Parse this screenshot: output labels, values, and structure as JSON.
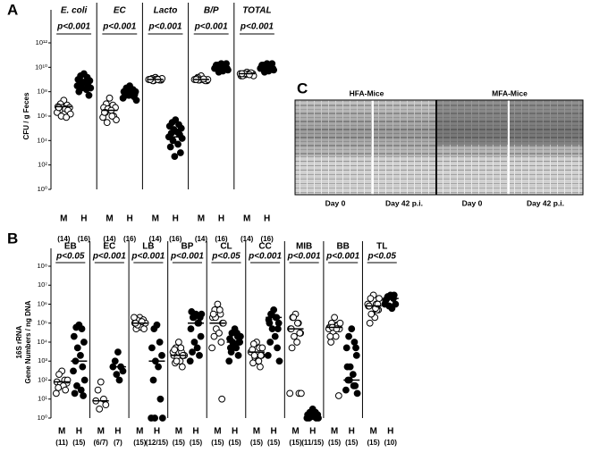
{
  "panel_labels": [
    "A",
    "B",
    "C"
  ],
  "chart_data": [
    {
      "type": "scatter",
      "log_scale": true,
      "y_label": "CFU / g Feces",
      "ylim": [
        1,
        1000000000000.0
      ],
      "yticks": [
        {
          "value": 1,
          "label": "10⁰"
        },
        {
          "value": 100,
          "label": "10²"
        },
        {
          "value": 10000,
          "label": "10⁴"
        },
        {
          "value": 1000000.0,
          "label": "10⁶"
        },
        {
          "value": 100000000.0,
          "label": "10⁸"
        },
        {
          "value": 10000000000.0,
          "label": "10¹⁰"
        },
        {
          "value": 1000000000000.0,
          "label": "10¹²"
        }
      ],
      "panels": [
        {
          "title": "E. coli",
          "p_value": "p<0.001",
          "groups": [
            {
              "name": "M",
              "n": "(14)",
              "marker": "open",
              "median": 6000000.0,
              "values": [
                20000000.0,
                10000000.0,
                8000000.0,
                6000000.0,
                5000000.0,
                5000000.0,
                4000000.0,
                3000000.0,
                3000000.0,
                2000000.0,
                1500000.0,
                1000000.0,
                800000.0,
                5000000.0
              ]
            },
            {
              "name": "H",
              "n": "(16)",
              "marker": "filled",
              "median": 300000000.0,
              "values": [
                3000000000.0,
                2000000000.0,
                1500000000.0,
                1000000000.0,
                800000000.0,
                600000000.0,
                500000000.0,
                400000000.0,
                300000000.0,
                300000000.0,
                200000000.0,
                200000000.0,
                150000000.0,
                100000000.0,
                50000000.0,
                600000000.0
              ]
            }
          ]
        },
        {
          "title": "EC",
          "p_value": "p<0.001",
          "groups": [
            {
              "name": "M",
              "n": "(14)",
              "marker": "open",
              "median": 3000000.0,
              "values": [
                30000000.0,
                10000000.0,
                8000000.0,
                5000000.0,
                5000000.0,
                4000000.0,
                3000000.0,
                2000000.0,
                1000000.0,
                800000.0,
                500000.0,
                300000.0,
                1000000.0,
                2000000.0
              ]
            },
            {
              "name": "H",
              "n": "(16)",
              "marker": "filled",
              "median": 100000000.0,
              "values": [
                300000000.0,
                200000000.0,
                150000000.0,
                100000000.0,
                100000000.0,
                80000000.0,
                60000000.0,
                50000000.0,
                40000000.0,
                30000000.0,
                20000000.0,
                100000000.0,
                150000000.0,
                80000000.0,
                60000000.0,
                50000000.0
              ]
            }
          ]
        },
        {
          "title": "Lacto",
          "p_value": "p<0.001",
          "groups": [
            {
              "name": "M",
              "n": "(14)",
              "marker": "open",
              "median": 1000000000.0,
              "values": [
                1500000000.0,
                1200000000.0,
                1000000000.0,
                1000000000.0,
                900000000.0,
                800000000.0,
                1100000000.0,
                1000000000.0,
                900000000.0,
                1000000000.0,
                1200000000.0,
                800000000.0,
                1000000000.0,
                1000000000.0
              ]
            },
            {
              "name": "H",
              "n": "(16)",
              "marker": "filled",
              "median": 20000.0,
              "values": [
                500000.0,
                300000.0,
                200000.0,
                150000.0,
                100000.0,
                80000.0,
                50000.0,
                40000.0,
                30000.0,
                20000.0,
                15000.0,
                10000.0,
                5000.0,
                3000.0,
                1000.0,
                500
              ]
            }
          ]
        },
        {
          "title": "B/P",
          "p_value": "p<0.001",
          "groups": [
            {
              "name": "M",
              "n": "(14)",
              "marker": "open",
              "median": 1000000000.0,
              "values": [
                2000000000.0,
                1500000000.0,
                1000000000.0,
                1000000000.0,
                800000000.0,
                900000000.0,
                1000000000.0,
                1200000000.0,
                800000000.0,
                1000000000.0,
                1000000000.0,
                900000000.0,
                1100000000.0,
                1000000000.0
              ]
            },
            {
              "name": "H",
              "n": "(16)",
              "marker": "filled",
              "median": 10000000000.0,
              "values": [
                20000000000.0,
                15000000000.0,
                10000000000.0,
                10000000000.0,
                8000000000.0,
                6000000000.0,
                5000000000.0,
                10000000000.0,
                12000000000.0,
                8000000000.0,
                6000000000.0,
                4000000000.0,
                10000000000.0,
                15000000000.0,
                20000000000.0,
                8000000000.0
              ]
            }
          ]
        },
        {
          "title": "TOTAL",
          "p_value": "p<0.001",
          "groups": [
            {
              "name": "M",
              "n": "(14)",
              "marker": "open",
              "median": 3000000000.0,
              "values": [
                4000000000.0,
                3000000000.0,
                3000000000.0,
                2000000000.0,
                3000000000.0,
                2500000000.0,
                3000000000.0,
                2000000000.0,
                3500000000.0,
                3000000000.0,
                2000000000.0,
                3000000000.0,
                2500000000.0,
                3000000000.0
              ]
            },
            {
              "name": "H",
              "n": "(16)",
              "marker": "filled",
              "median": 10000000000.0,
              "values": [
                20000000000.0,
                15000000000.0,
                10000000000.0,
                10000000000.0,
                8000000000.0,
                6000000000.0,
                5000000000.0,
                10000000000.0,
                12000000000.0,
                8000000000.0,
                6000000000.0,
                4000000000.0,
                10000000000.0,
                15000000000.0,
                20000000000.0,
                8000000000.0
              ]
            }
          ]
        }
      ]
    },
    {
      "type": "scatter",
      "log_scale": true,
      "y_label": [
        "16S rRNA",
        "Gene Numbers / ng DNA"
      ],
      "ylim": [
        1,
        100000000.0
      ],
      "yticks": [
        {
          "value": 1,
          "label": "10⁰"
        },
        {
          "value": 10,
          "label": "10¹"
        },
        {
          "value": 100,
          "label": "10²"
        },
        {
          "value": 1000,
          "label": "10³"
        },
        {
          "value": 10000,
          "label": "10⁴"
        },
        {
          "value": 100000,
          "label": "10⁵"
        },
        {
          "value": 1000000.0,
          "label": "10⁶"
        },
        {
          "value": 10000000.0,
          "label": "10⁷"
        },
        {
          "value": 100000000.0,
          "label": "10⁸"
        }
      ],
      "panels": [
        {
          "title": "EB",
          "p_value": "p<0.05",
          "groups": [
            {
              "name": "M",
              "n": "(11)",
              "marker": "open",
              "median": 80,
              "values": [
                300,
                200,
                100,
                80,
                70,
                60,
                50,
                40,
                30,
                20,
                100
              ]
            },
            {
              "name": "H",
              "n": "(15)",
              "marker": "filled",
              "median": 1000,
              "values": [
                80000,
                60000,
                50000,
                20000,
                10000,
                5000,
                2000,
                1000,
                500,
                300,
                100,
                50,
                30,
                20,
                15
              ]
            }
          ]
        },
        {
          "title": "EC",
          "p_value": "p<0.001",
          "groups": [
            {
              "name": "M",
              "n": "(6/7)",
              "marker": "open",
              "median": 8,
              "values": [
                80,
                30,
                10,
                8,
                5,
                3
              ]
            },
            {
              "name": "H",
              "n": "(7)",
              "marker": "filled",
              "median": 500,
              "values": [
                3000,
                1000,
                500,
                500,
                300,
                200,
                100
              ]
            }
          ]
        },
        {
          "title": "LB",
          "p_value": "p<0.001",
          "groups": [
            {
              "name": "M",
              "n": "(15)",
              "marker": "open",
              "median": 100000,
              "values": [
                200000,
                150000,
                120000,
                100000,
                100000,
                80000,
                60000,
                50000,
                150000,
                200000,
                100000,
                80000,
                120000,
                100000,
                50000
              ]
            },
            {
              "name": "H",
              "n": "(12/15)",
              "marker": "filled",
              "median": 1000,
              "values": [
                80000,
                50000,
                10000,
                5000,
                2000,
                1000,
                500,
                100,
                10,
                1,
                1,
                1
              ]
            }
          ]
        },
        {
          "title": "BP",
          "p_value": "p<0.001",
          "groups": [
            {
              "name": "M",
              "n": "(15)",
              "marker": "open",
              "median": 2000,
              "values": [
                10000,
                5000,
                3000,
                2000,
                2000,
                1500,
                1000,
                800,
                500,
                3000,
                2000,
                1000,
                5000,
                4000,
                2000
              ]
            },
            {
              "name": "H",
              "n": "(15)",
              "marker": "filled",
              "median": 100000,
              "values": [
                300000,
                200000,
                100000,
                50000,
                20000,
                10000,
                5000,
                3000,
                2000,
                1000,
                300000,
                200000,
                100000,
                400000,
                200000
              ]
            }
          ]
        },
        {
          "title": "CL",
          "p_value": "p<0.05",
          "groups": [
            {
              "name": "M",
              "n": "(15)",
              "marker": "open",
              "median": 100000,
              "values": [
                1000000.0,
                500000,
                300000,
                200000,
                100000,
                50000,
                30000,
                20000,
                10000,
                5000,
                100000,
                200000,
                500000,
                300000,
                10
              ]
            },
            {
              "name": "H",
              "n": "(15)",
              "marker": "filled",
              "median": 10000,
              "values": [
                50000,
                30000,
                20000,
                15000,
                10000,
                8000,
                5000,
                3000,
                2000,
                1000,
                20000,
                10000,
                30000,
                5000,
                10000
              ]
            }
          ]
        },
        {
          "title": "CC",
          "p_value": "p<0.001",
          "groups": [
            {
              "name": "M",
              "n": "(15)",
              "marker": "open",
              "median": 3000,
              "values": [
                10000,
                8000,
                5000,
                3000,
                2000,
                1500,
                1000,
                800,
                500,
                3000,
                5000,
                2000,
                1000,
                4000,
                2000
              ]
            },
            {
              "name": "H",
              "n": "(15)",
              "marker": "filled",
              "median": 200000,
              "values": [
                500000,
                300000,
                200000,
                150000,
                100000,
                50000,
                20000,
                10000,
                5000,
                2000,
                1000,
                300000,
                200000,
                100000,
                50000
              ]
            }
          ]
        },
        {
          "title": "MIB",
          "p_value": "p<0.001",
          "groups": [
            {
              "name": "M",
              "n": "(15)",
              "marker": "open",
              "median": 50000,
              "values": [
                300000,
                200000,
                100000,
                50000,
                30000,
                20000,
                10000,
                5000,
                20,
                20,
                20,
                200000,
                100000,
                50000,
                30000
              ]
            },
            {
              "name": "H",
              "n": "(11/15)",
              "marker": "filled",
              "median": 1.5,
              "values": [
                3,
                2,
                2,
                1.5,
                1.5,
                1.2,
                1.2,
                1,
                1,
                1,
                1
              ]
            }
          ]
        },
        {
          "title": "BB",
          "p_value": "p<0.001",
          "groups": [
            {
              "name": "M",
              "n": "(15)",
              "marker": "open",
              "median": 60000,
              "values": [
                200000,
                100000,
                80000,
                60000,
                50000,
                30000,
                20000,
                10000,
                80000,
                50000,
                100000,
                60000,
                50000,
                20000,
                15
              ]
            },
            {
              "name": "H",
              "n": "(15)",
              "marker": "filled",
              "median": 100,
              "values": [
                50000,
                20000,
                10000,
                5000,
                2000,
                500,
                200,
                100,
                50,
                30,
                20,
                100,
                50,
                500,
                5000
              ]
            }
          ]
        },
        {
          "title": "TL",
          "p_value": "p<0.05",
          "groups": [
            {
              "name": "M",
              "n": "(15)",
              "marker": "open",
              "median": 800000,
              "values": [
                3000000.0,
                2000000.0,
                1000000.0,
                800000,
                500000,
                300000,
                200000,
                100000,
                500000,
                1000000.0,
                2000000.0,
                300000,
                600000,
                800000,
                1000000.0
              ]
            },
            {
              "name": "H",
              "n": "(10)",
              "marker": "filled",
              "median": 2000000.0,
              "values": [
                3000000.0,
                2500000.0,
                2000000.0,
                1500000.0,
                1000000.0,
                800000,
                600000,
                2000000.0,
                3000000.0,
                1000000.0
              ]
            }
          ]
        }
      ]
    }
  ],
  "gel": {
    "headers": [
      "HFA-Mice",
      "MFA-Mice"
    ],
    "lanes": [
      "Day 0",
      "Day 42 p.i.",
      "Day 0",
      "Day 42 p.i."
    ]
  }
}
